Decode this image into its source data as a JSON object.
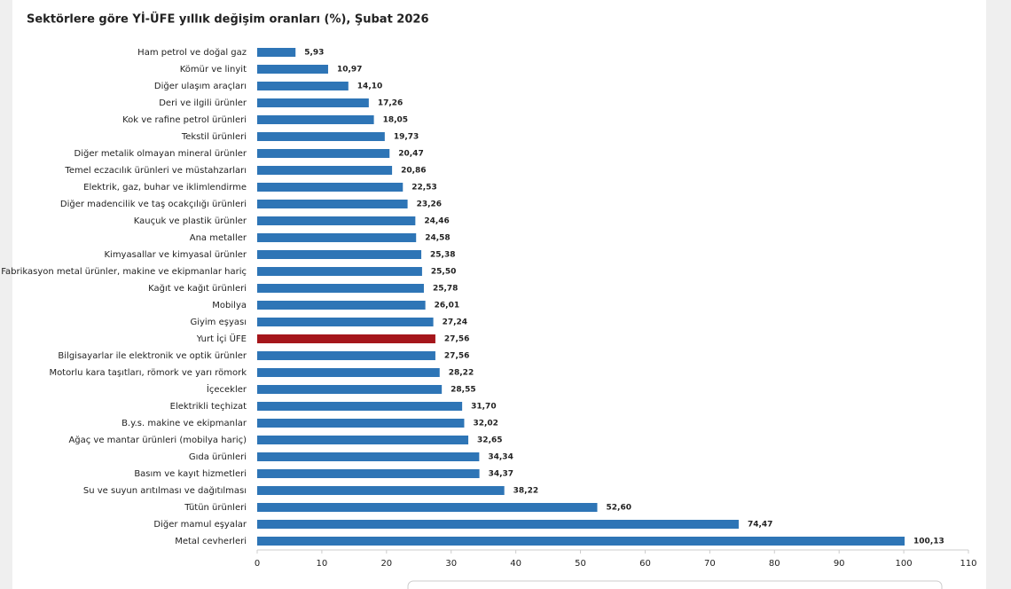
{
  "chart_data": {
    "type": "bar",
    "orientation": "horizontal",
    "title": "Sektörlere göre Yİ-ÜFE yıllık değişim oranları (%), Şubat 2026",
    "categories": [
      "Ham petrol ve doğal gaz",
      "Kömür ve linyit",
      "Diğer ulaşım araçları",
      "Deri ve ilgili ürünler",
      "Kok ve rafine petrol ürünleri",
      "Tekstil ürünleri",
      "Diğer metalik olmayan mineral ürünler",
      "Temel eczacılık ürünleri ve müstahzarları",
      "Elektrik, gaz, buhar ve iklimlendirme",
      "Diğer madencilik ve taş ocakçılığı ürünleri",
      "Kauçuk ve plastik ürünler",
      "Ana metaller",
      "Kimyasallar ve kimyasal ürünler",
      "Fabrikasyon metal ürünler, makine ve ekipmanlar hariç",
      "Kağıt ve kağıt ürünleri",
      "Mobilya",
      "Giyim eşyası",
      "Yurt İçi ÜFE",
      "Bilgisayarlar ile elektronik ve optik ürünler",
      "Motorlu kara taşıtları, römork ve yarı römork",
      "İçecekler",
      "Elektrikli teçhizat",
      "B.y.s. makine ve ekipmanlar",
      "Ağaç ve mantar ürünleri (mobilya hariç)",
      "Gıda ürünleri",
      "Basım ve kayıt hizmetleri",
      "Su ve suyun arıtılması ve dağıtılması",
      "Tütün ürünleri",
      "Diğer mamul eşyalar",
      "Metal cevherleri"
    ],
    "values": [
      5.93,
      10.97,
      14.1,
      17.26,
      18.05,
      19.73,
      20.47,
      20.86,
      22.53,
      23.26,
      24.46,
      24.58,
      25.38,
      25.5,
      25.78,
      26.01,
      27.24,
      27.56,
      27.56,
      28.22,
      28.55,
      31.7,
      32.02,
      32.65,
      34.34,
      34.37,
      38.22,
      52.6,
      74.47,
      100.13
    ],
    "value_labels": [
      "5,93",
      "10,97",
      "14,10",
      "17,26",
      "18,05",
      "19,73",
      "20,47",
      "20,86",
      "22,53",
      "23,26",
      "24,46",
      "24,58",
      "25,38",
      "25,50",
      "25,78",
      "26,01",
      "27,24",
      "27,56",
      "27,56",
      "28,22",
      "28,55",
      "31,70",
      "32,02",
      "32,65",
      "34,34",
      "34,37",
      "38,22",
      "52,60",
      "74,47",
      "100,13"
    ],
    "colors": [
      "#2e75b6",
      "#2e75b6",
      "#2e75b6",
      "#2e75b6",
      "#2e75b6",
      "#2e75b6",
      "#2e75b6",
      "#2e75b6",
      "#2e75b6",
      "#2e75b6",
      "#2e75b6",
      "#2e75b6",
      "#2e75b6",
      "#2e75b6",
      "#2e75b6",
      "#2e75b6",
      "#2e75b6",
      "#a5161b",
      "#2e75b6",
      "#2e75b6",
      "#2e75b6",
      "#2e75b6",
      "#2e75b6",
      "#2e75b6",
      "#2e75b6",
      "#2e75b6",
      "#2e75b6",
      "#2e75b6",
      "#2e75b6",
      "#2e75b6"
    ],
    "xlim": [
      0,
      110
    ],
    "xticks": [
      0,
      10,
      20,
      30,
      40,
      50,
      60,
      70,
      80,
      90,
      100,
      110
    ]
  }
}
